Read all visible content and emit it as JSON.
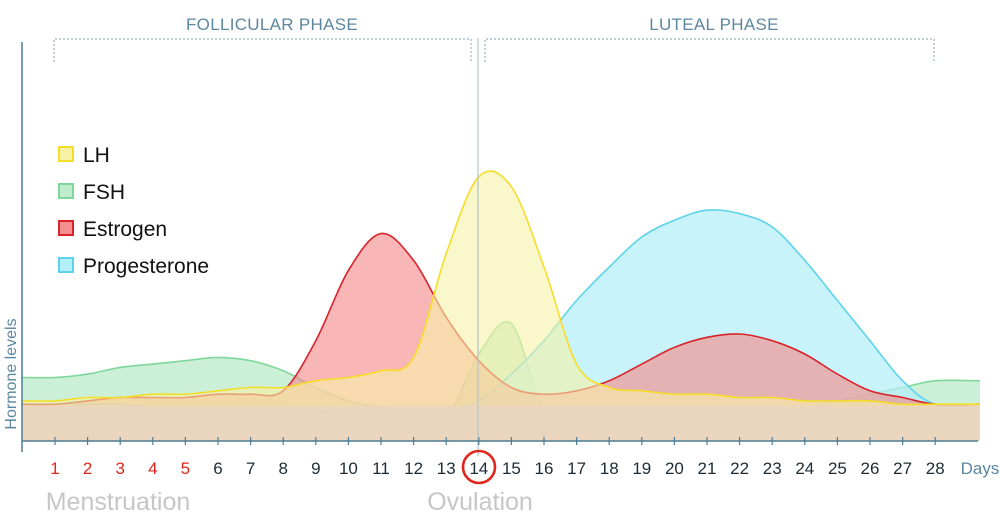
{
  "chart_data": {
    "type": "area",
    "ylabel": "Hormone levels",
    "xlabel": "Days",
    "x": [
      1,
      2,
      3,
      4,
      5,
      6,
      7,
      8,
      9,
      10,
      11,
      12,
      13,
      14,
      15,
      16,
      17,
      18,
      19,
      20,
      21,
      22,
      23,
      24,
      25,
      26,
      27,
      28
    ],
    "menstruation_days": [
      1,
      2,
      3,
      4,
      5
    ],
    "highlight_day": 14,
    "phases": [
      {
        "label": "FOLLICULAR PHASE",
        "start": 1,
        "end": 14
      },
      {
        "label": "LUTEAL PHASE",
        "start": 14,
        "end": 28
      }
    ],
    "annotations": [
      {
        "text": "Menstruation",
        "x": 3
      },
      {
        "text": "Ovulation",
        "x": 14
      }
    ],
    "series": [
      {
        "name": "LH",
        "values": [
          1.2,
          1.3,
          1.3,
          1.4,
          1.4,
          1.5,
          1.6,
          1.6,
          1.8,
          1.9,
          2.1,
          2.5,
          5.6,
          7.9,
          7.6,
          5.2,
          2.3,
          1.6,
          1.5,
          1.4,
          1.4,
          1.3,
          1.3,
          1.2,
          1.2,
          1.2,
          1.1,
          1.1
        ]
      },
      {
        "name": "FSH",
        "values": [
          1.9,
          2.0,
          2.2,
          2.3,
          2.4,
          2.5,
          2.4,
          2.1,
          1.6,
          1.2,
          1.0,
          0.9,
          0.7,
          2.6,
          3.5,
          0.9,
          0.8,
          0.8,
          0.8,
          0.8,
          0.8,
          0.8,
          0.9,
          1.0,
          1.2,
          1.4,
          1.6,
          1.8
        ]
      },
      {
        "name": "Estrogen",
        "values": [
          1.1,
          1.2,
          1.3,
          1.3,
          1.3,
          1.4,
          1.4,
          1.5,
          3.0,
          5.1,
          6.2,
          5.4,
          3.7,
          2.4,
          1.6,
          1.4,
          1.5,
          1.8,
          2.3,
          2.8,
          3.1,
          3.2,
          3.0,
          2.6,
          2.0,
          1.5,
          1.3,
          1.1
        ]
      },
      {
        "name": "Progesterone",
        "values": [
          1.1,
          1.1,
          1.1,
          1.0,
          1.0,
          1.0,
          1.0,
          1.0,
          0.9,
          0.9,
          0.8,
          0.8,
          0.8,
          1.2,
          2.0,
          3.0,
          4.2,
          5.2,
          6.1,
          6.6,
          6.9,
          6.8,
          6.4,
          5.4,
          4.2,
          3.0,
          1.8,
          1.1
        ]
      }
    ],
    "ylim": [
      0,
      9
    ],
    "legend_position": "top-left"
  },
  "colors": {
    "LH": {
      "fill": "#f7f1a6",
      "stroke": "#f5dd28"
    },
    "FSH": {
      "fill": "#bfeccd",
      "stroke": "#7fd79a"
    },
    "Estrogen": {
      "fill": "#f58f8f",
      "stroke": "#d8232a"
    },
    "Progesterone": {
      "fill": "#b4eef8",
      "stroke": "#5cd3ea"
    },
    "base": "#e8d6c4",
    "axis": "#4f7d95",
    "menstruation_tick": "#e1261c",
    "day_tick": "#1c2c36",
    "highlight_circle": "#e1261c"
  }
}
